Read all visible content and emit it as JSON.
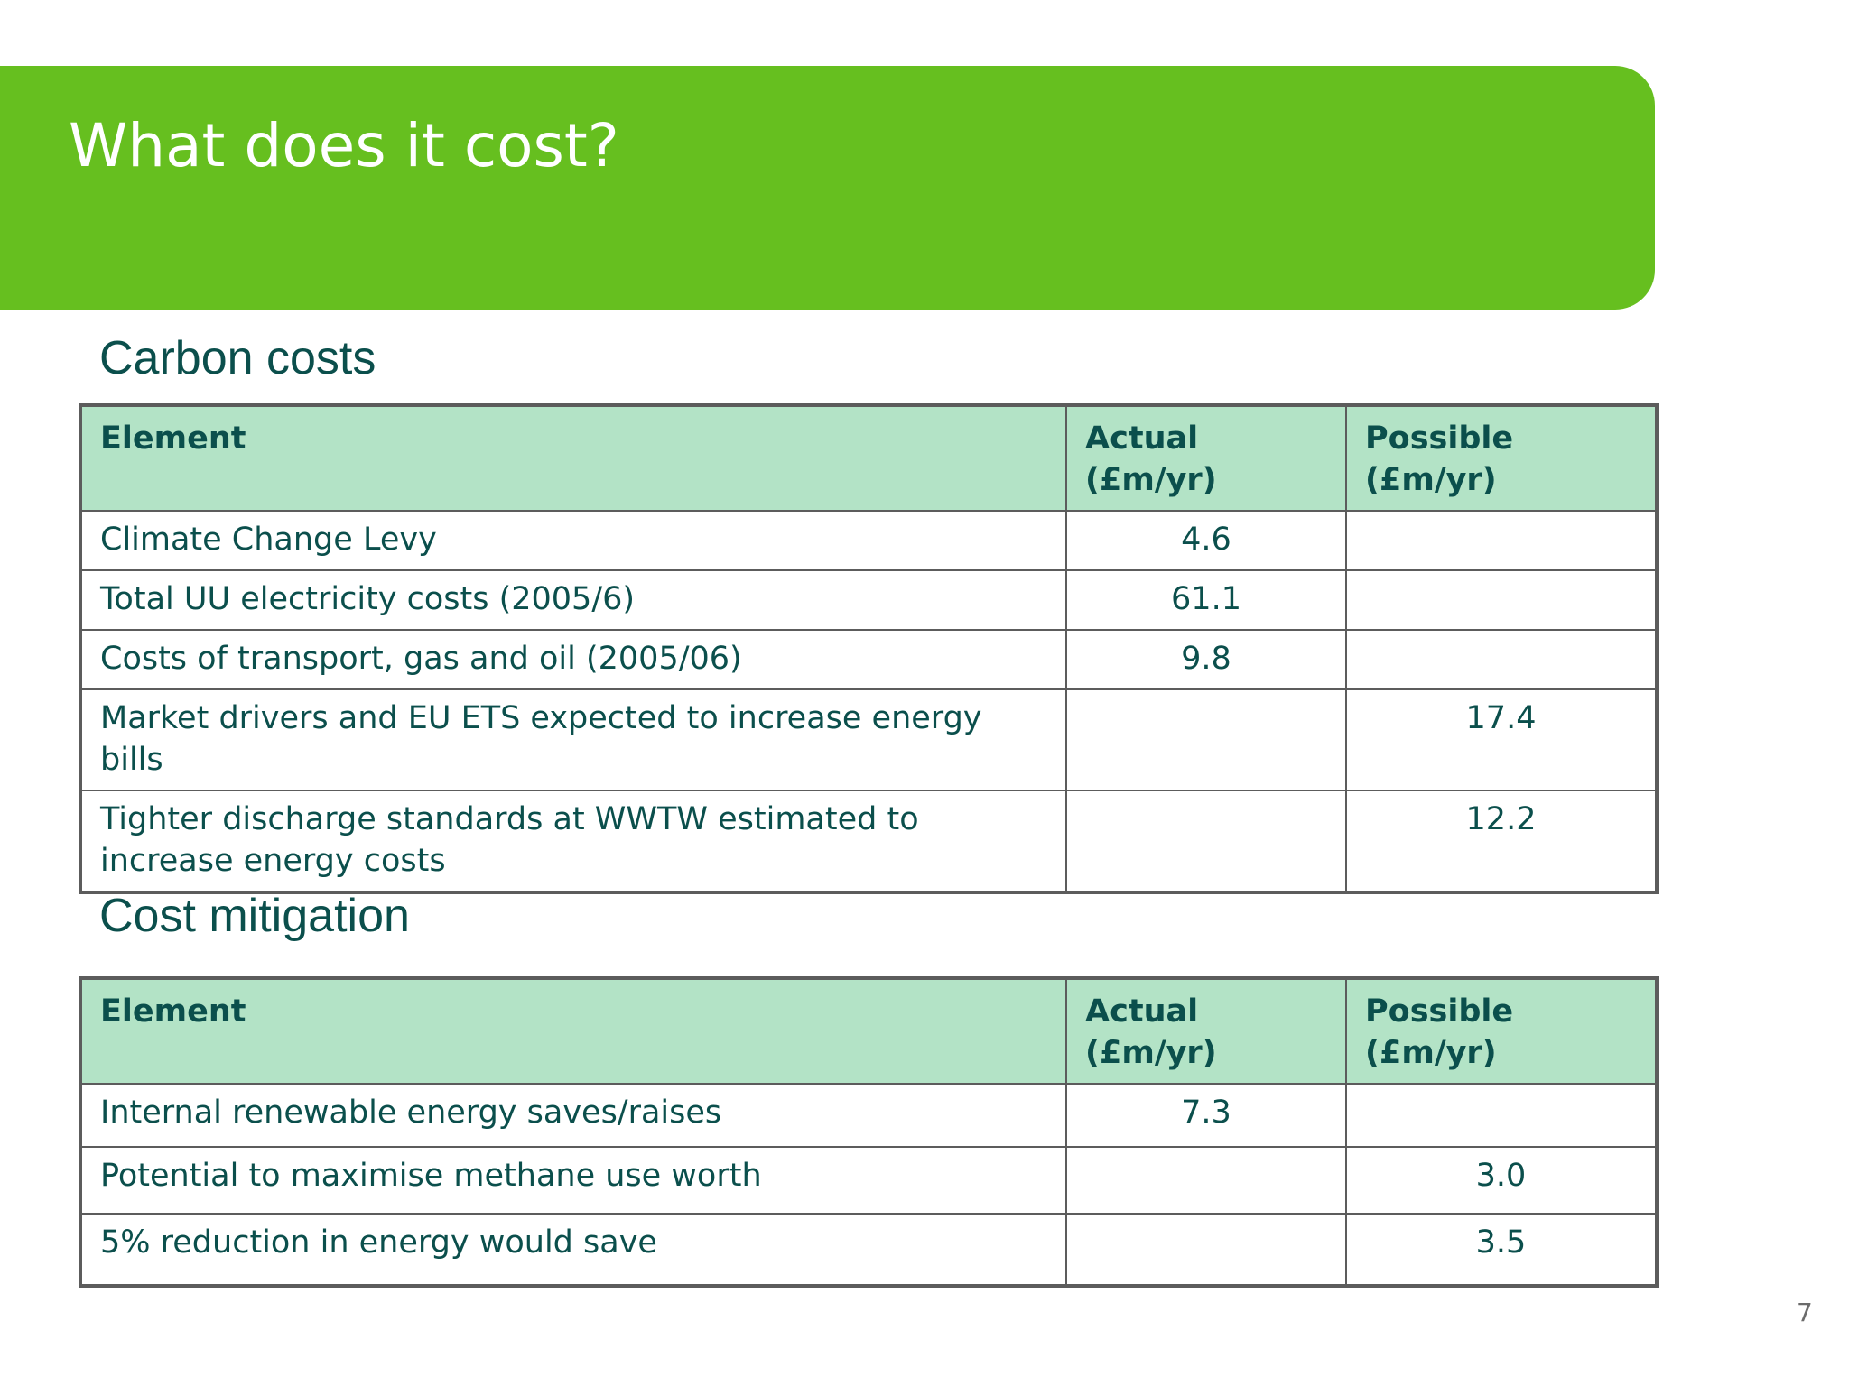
{
  "slide": {
    "title": "What does it cost?",
    "page_number": "7",
    "colors": {
      "banner": "#66bf1f",
      "header_row": "#b3e3c6",
      "text": "#0b4f4c"
    }
  },
  "carbon_costs": {
    "heading": "Carbon costs",
    "columns": [
      "Element",
      "Actual\n(£m/yr)",
      "Possible\n(£m/yr)"
    ],
    "rows": [
      {
        "element": "Climate Change Levy",
        "actual": "4.6",
        "possible": ""
      },
      {
        "element": "Total UU electricity costs (2005/6)",
        "actual": "61.1",
        "possible": ""
      },
      {
        "element": "Costs of transport, gas and oil (2005/06)",
        "actual": "9.8",
        "possible": ""
      },
      {
        "element": "Market drivers and EU ETS expected to increase energy bills",
        "actual": "",
        "possible": "17.4"
      },
      {
        "element": "Tighter discharge standards at WWTW estimated to increase energy costs",
        "actual": "",
        "possible": "12.2"
      }
    ]
  },
  "cost_mitigation": {
    "heading": "Cost mitigation",
    "columns": [
      "Element",
      "Actual\n(£m/yr)",
      "Possible\n(£m/yr)"
    ],
    "rows": [
      {
        "element": "Internal renewable energy saves/raises",
        "actual": "7.3",
        "possible": ""
      },
      {
        "element": "Potential to maximise methane use worth",
        "actual": "",
        "possible": "3.0"
      },
      {
        "element": "5% reduction in energy would save",
        "actual": "",
        "possible": "3.5"
      }
    ]
  }
}
